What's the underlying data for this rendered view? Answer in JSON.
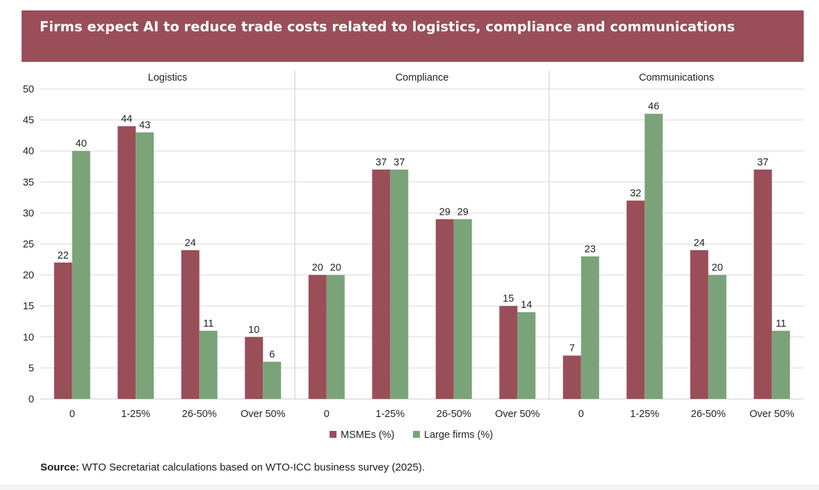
{
  "title": "Firms expect AI to reduce trade costs related to logistics, compliance and communications",
  "source_label": "Source:",
  "source_text": "WTO Secretariat calculations based on WTO-ICC business survey (2025).",
  "colors": {
    "banner": "#9a4e58",
    "msme": "#9a4e58",
    "large": "#7ba37a",
    "grid": "#d9d9d9",
    "axis": "#c8c8c8",
    "text": "#222222"
  },
  "chart_data": {
    "type": "bar",
    "ylim": [
      0,
      50
    ],
    "yticks": [
      0,
      5,
      10,
      15,
      20,
      25,
      30,
      35,
      40,
      45,
      50
    ],
    "grid": true,
    "legend_position": "bottom",
    "categories": [
      "0",
      "1-25%",
      "26-50%",
      "Over 50%"
    ],
    "legend": [
      "MSMEs (%)",
      "Large firms (%)"
    ],
    "panels": [
      {
        "title": "Logistics",
        "series": [
          {
            "name": "MSMEs (%)",
            "values": [
              22,
              44,
              24,
              10
            ]
          },
          {
            "name": "Large firms (%)",
            "values": [
              40,
              43,
              11,
              6
            ]
          }
        ]
      },
      {
        "title": "Compliance",
        "series": [
          {
            "name": "MSMEs (%)",
            "values": [
              20,
              37,
              29,
              15
            ]
          },
          {
            "name": "Large firms (%)",
            "values": [
              20,
              37,
              29,
              14
            ]
          }
        ]
      },
      {
        "title": "Communications",
        "series": [
          {
            "name": "MSMEs (%)",
            "values": [
              7,
              32,
              24,
              37
            ]
          },
          {
            "name": "Large firms (%)",
            "values": [
              23,
              46,
              20,
              11
            ]
          }
        ]
      }
    ]
  }
}
